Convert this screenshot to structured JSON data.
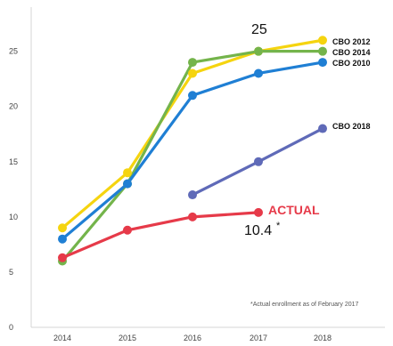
{
  "chart_data": {
    "type": "line",
    "x": [
      2014,
      2015,
      2016,
      2017,
      2018
    ],
    "ylim": [
      0,
      29
    ],
    "yticks": [
      "0",
      "5",
      "10",
      "15",
      "20",
      "25"
    ],
    "xticks": [
      "2014",
      "2015",
      "2016",
      "2017",
      "2018"
    ],
    "series": [
      {
        "name": "CBO 2012",
        "values": [
          9,
          14,
          23,
          25,
          26
        ],
        "color": "#f5d40f"
      },
      {
        "name": "CBO 2014",
        "values": [
          6,
          13,
          24,
          25,
          25
        ],
        "color": "#74b44b"
      },
      {
        "name": "CBO 2010",
        "values": [
          8,
          13,
          21,
          23,
          24
        ],
        "color": "#1f7fd4"
      },
      {
        "name": "CBO 2018",
        "values": [
          null,
          null,
          12,
          15,
          18
        ],
        "color": "#5f6ab8"
      },
      {
        "name": "ACTUAL",
        "values": [
          6.3,
          8.8,
          10,
          10.4,
          null
        ],
        "color": "#e63a49"
      }
    ],
    "annotations": {
      "top_value": "25",
      "actual_value": "10.4",
      "actual_marker": "*",
      "footnote": "*Actual enrollment as of February 2017"
    }
  }
}
